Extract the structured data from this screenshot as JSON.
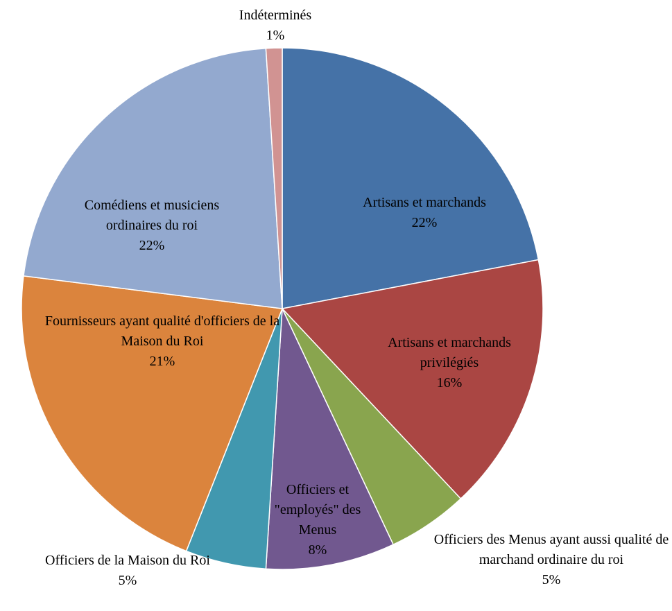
{
  "chart_data": {
    "type": "pie",
    "categories": [
      "Artisans et marchands",
      "Artisans et marchands privilégiés",
      "Officiers des Menus ayant aussi qualité de marchand ordinaire du roi",
      "Officiers et \"employés\" des Menus",
      "Officiers de la Maison du Roi",
      "Fournisseurs ayant qualité d'officiers de la Maison du Roi",
      "Comédiens et musiciens ordinaires du roi",
      "Indéterminés"
    ],
    "values": [
      22,
      16,
      5,
      8,
      5,
      21,
      22,
      1
    ],
    "value_labels": [
      "22%",
      "16%",
      "5%",
      "8%",
      "5%",
      "21%",
      "22%",
      "1%"
    ],
    "colors": [
      "#4572a7",
      "#aa4643",
      "#89a54e",
      "#71588f",
      "#4198af",
      "#db843d",
      "#93a9cf",
      "#d19392"
    ]
  }
}
